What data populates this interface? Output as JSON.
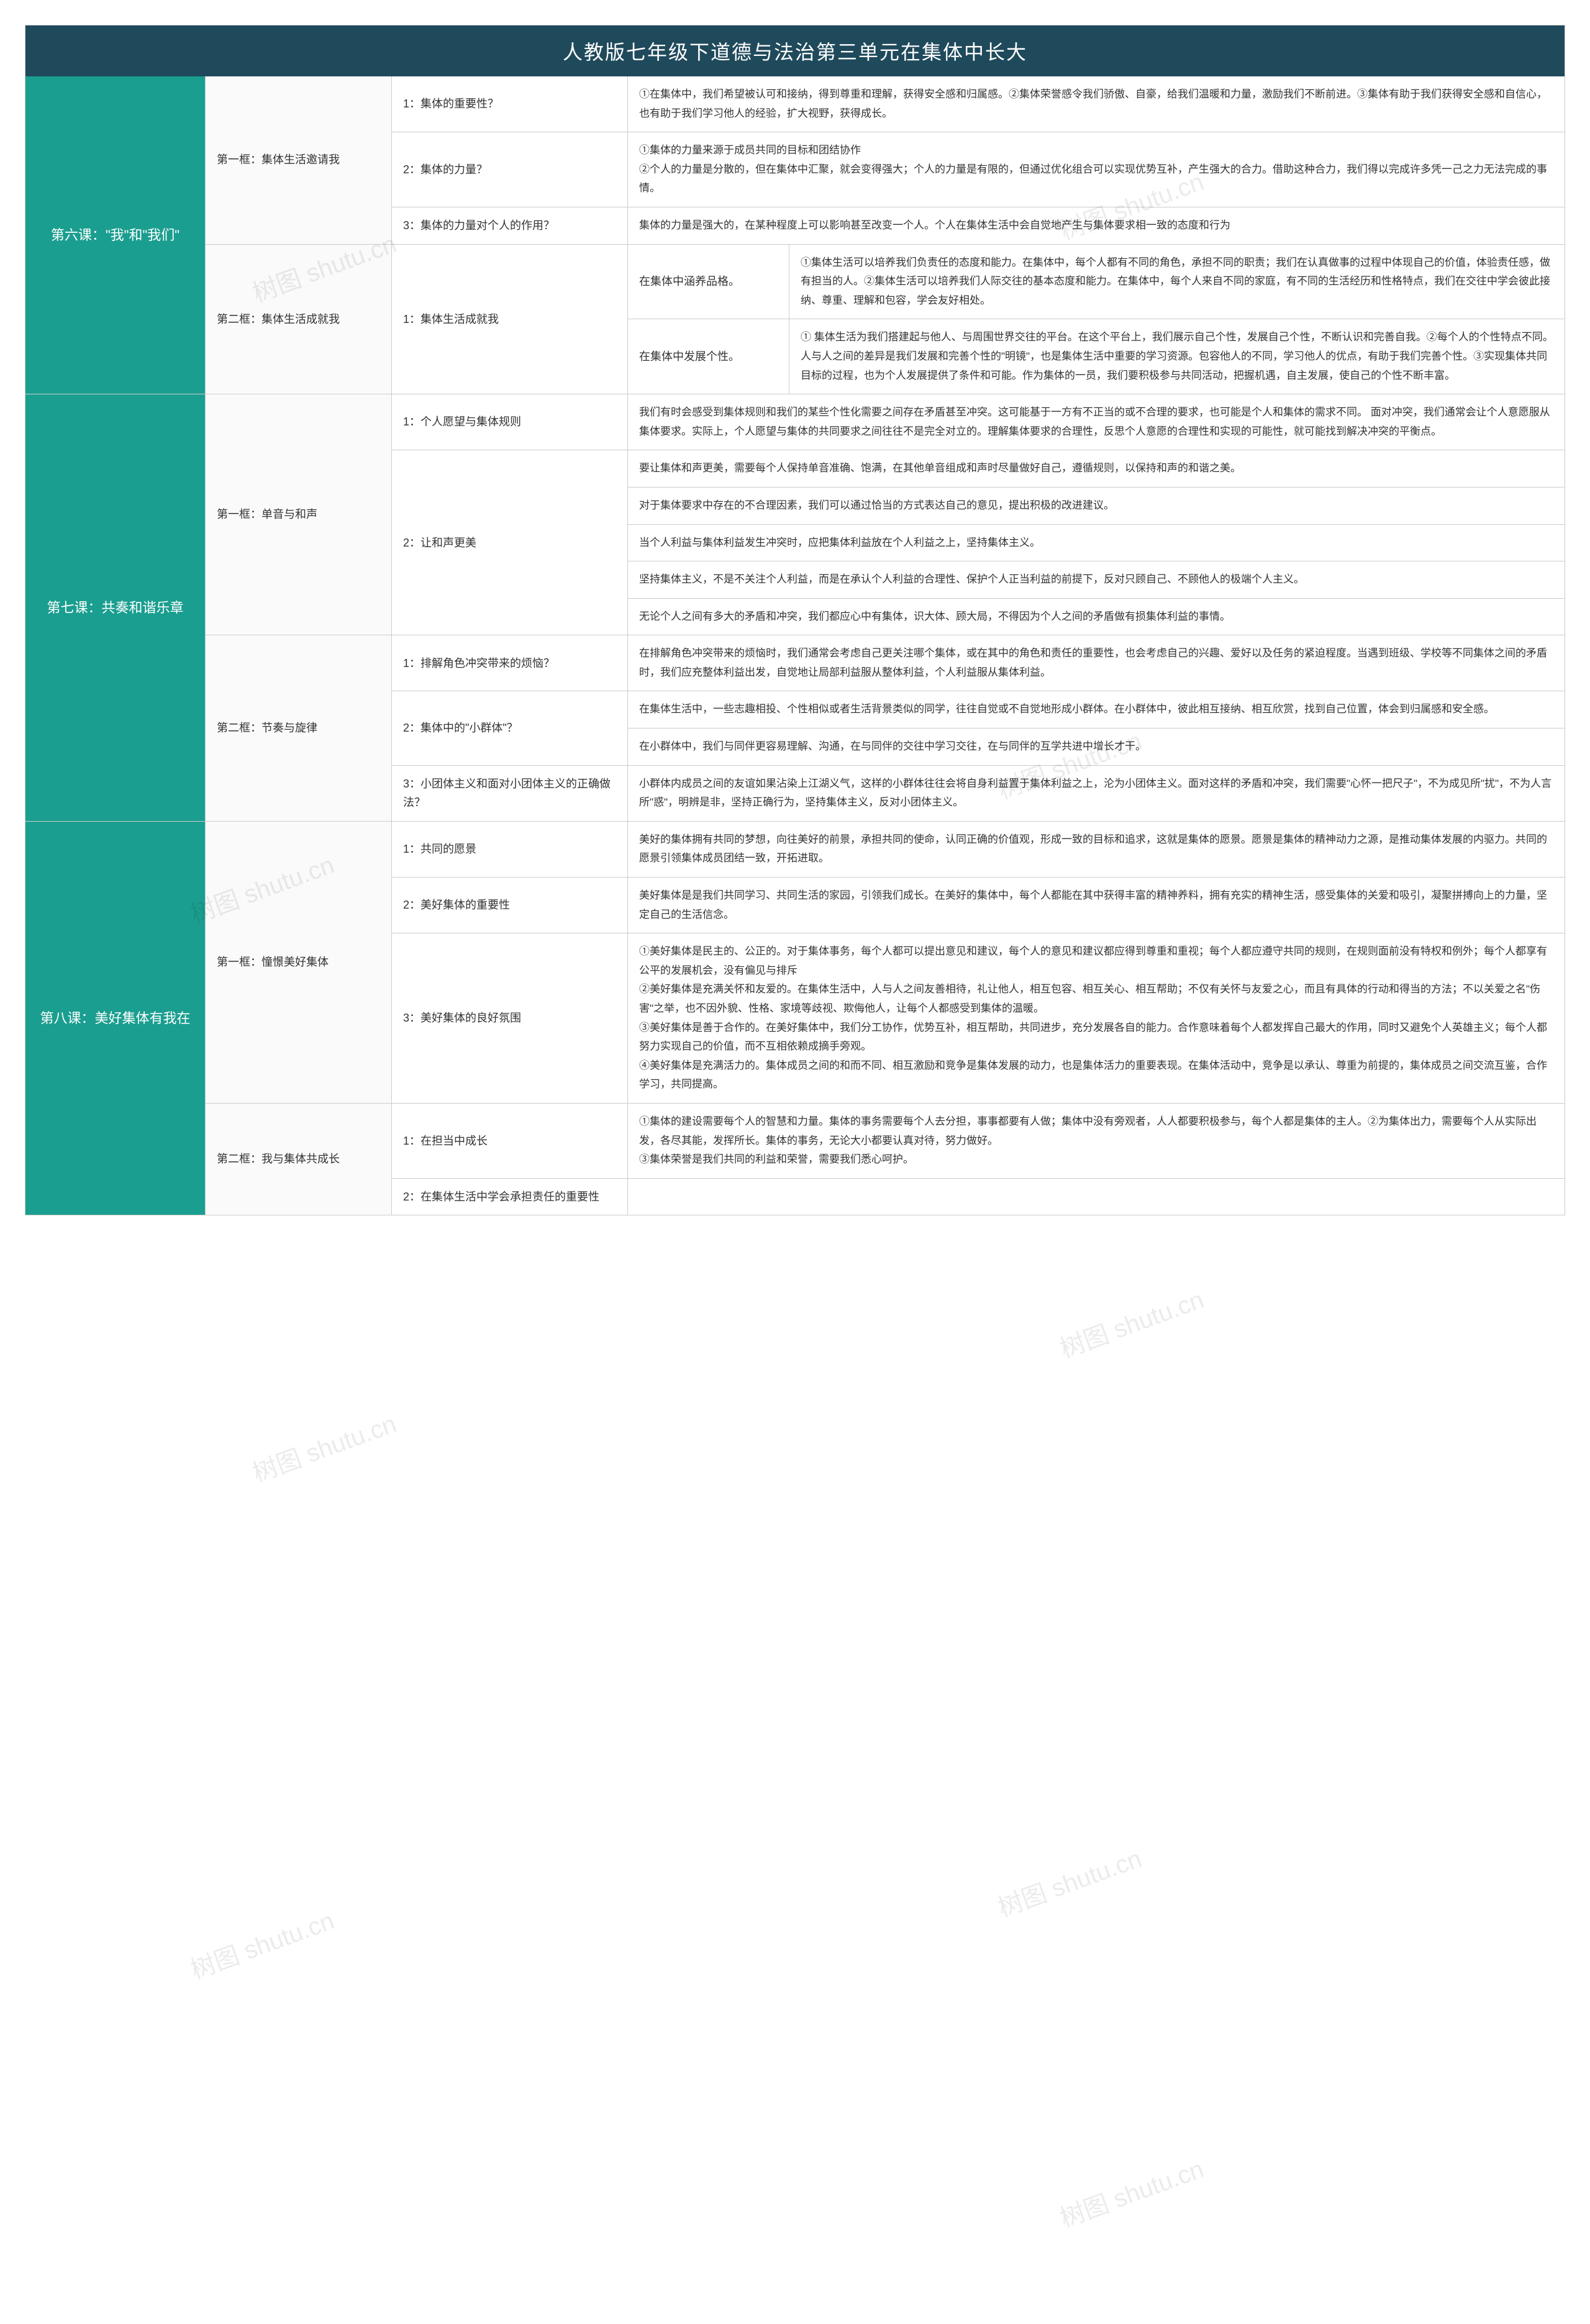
{
  "colors": {
    "title_bg": "#1f4a5c",
    "lesson_bg": "#1a9e8f",
    "border": "#cccccc",
    "text": "#333333",
    "detail_text": "#333333"
  },
  "title": "人教版七年级下道德与法治第三单元在集体中长大",
  "watermark": "树图 shutu.cn",
  "lessons": [
    {
      "name": "第六课：\"我\"和\"我们\"",
      "frames": [
        {
          "name": "第一框：集体生活邀请我",
          "points": [
            {
              "label": "1：集体的重要性？",
              "details": [
                "①在集体中，我们希望被认可和接纳，得到尊重和理解，获得安全感和归属感。②集体荣誉感令我们骄傲、自豪，给我们温暖和力量，激励我们不断前进。③集体有助于我们获得安全感和自信心，也有助于我们学习他人的经验，扩大视野，获得成长。"
              ]
            },
            {
              "label": "2：集体的力量？",
              "details": [
                "①集体的力量来源于成员共同的目标和团结协作\n②个人的力量是分散的，但在集体中汇聚，就会变得强大；个人的力量是有限的，但通过优化组合可以实现优势互补，产生强大的合力。借助这种合力，我们得以完成许多凭一己之力无法完成的事情。"
              ]
            },
            {
              "label": "3：集体的力量对个人的作用？",
              "details": [
                "集体的力量是强大的，在某种程度上可以影响甚至改变一个人。个人在集体生活中会自觉地产生与集体要求相一致的态度和行为"
              ]
            }
          ]
        },
        {
          "name": "第二框：集体生活成就我",
          "points": [
            {
              "label": "1：集体生活成就我",
              "subs": [
                {
                  "label": "在集体中涵养品格。",
                  "detail": "①集体生活可以培养我们负责任的态度和能力。在集体中，每个人都有不同的角色，承担不同的职责；我们在认真做事的过程中体现自己的价值，体验责任感，做有担当的人。②集体生活可以培养我们人际交往的基本态度和能力。在集体中，每个人来自不同的家庭，有不同的生活经历和性格特点，我们在交往中学会彼此接纳、尊重、理解和包容，学会友好相处。"
                },
                {
                  "label": "在集体中发展个性。",
                  "detail": "① 集体生活为我们搭建起与他人、与周围世界交往的平台。在这个平台上，我们展示自己个性，发展自己个性，不断认识和完善自我。②每个人的个性特点不同。人与人之间的差异是我们发展和完善个性的\"明镜\"，也是集体生活中重要的学习资源。包容他人的不同，学习他人的优点，有助于我们完善个性。③实现集体共同目标的过程，也为个人发展提供了条件和可能。作为集体的一员，我们要积极参与共同活动，把握机遇，自主发展，使自己的个性不断丰富。"
                }
              ]
            }
          ]
        }
      ]
    },
    {
      "name": "第七课：共奏和谐乐章",
      "frames": [
        {
          "name": "第一框：单音与和声",
          "points": [
            {
              "label": "1：个人愿望与集体规则",
              "details": [
                "我们有时会感受到集体规则和我们的某些个性化需要之间存在矛盾甚至冲突。这可能基于一方有不正当的或不合理的要求，也可能是个人和集体的需求不同。 面对冲突，我们通常会让个人意愿服从集体要求。实际上，个人愿望与集体的共同要求之间往往不是完全对立的。理解集体要求的合理性，反思个人意愿的合理性和实现的可能性，就可能找到解决冲突的平衡点。"
              ]
            },
            {
              "label": "2：让和声更美",
              "details": [
                "要让集体和声更美，需要每个人保持单音准确、饱满，在其他单音组成和声时尽量做好自己，遵循规则，以保持和声的和谐之美。",
                "对于集体要求中存在的不合理因素，我们可以通过恰当的方式表达自己的意见，提出积极的改进建议。",
                "当个人利益与集体利益发生冲突时，应把集体利益放在个人利益之上，坚持集体主义。",
                "坚持集体主义，不是不关注个人利益，而是在承认个人利益的合理性、保护个人正当利益的前提下，反对只顾自己、不顾他人的极端个人主义。",
                "无论个人之间有多大的矛盾和冲突，我们都应心中有集体，识大体、顾大局，不得因为个人之间的矛盾做有损集体利益的事情。"
              ]
            }
          ]
        },
        {
          "name": "第二框：节奏与旋律",
          "points": [
            {
              "label": "1：排解角色冲突带来的烦恼？",
              "details": [
                "在排解角色冲突带来的烦恼时，我们通常会考虑自己更关注哪个集体，或在其中的角色和责任的重要性，也会考虑自己的兴趣、爱好以及任务的紧迫程度。当遇到班级、学校等不同集体之间的矛盾时，我们应充整体利益出发，自觉地让局部利益服从整体利益，个人利益服从集体利益。"
              ]
            },
            {
              "label": "2：集体中的\"小群体\"？",
              "details": [
                "在集体生活中，一些志趣相投、个性相似或者生活背景类似的同学，往往自觉或不自觉地形成小群体。在小群体中，彼此相互接纳、相互欣赏，找到自己位置，体会到归属感和安全感。",
                "在小群体中，我们与同伴更容易理解、沟通，在与同伴的交往中学习交往，在与同伴的互学共进中增长才干。"
              ]
            },
            {
              "label": "3：小团体主义和面对小团体主义的正确做法？",
              "details": [
                "小群体内成员之间的友谊如果沾染上江湖义气，这样的小群体往往会将自身利益置于集体利益之上，沦为小团体主义。面对这样的矛盾和冲突，我们需要\"心怀一把尺子\"，不为成见所\"扰\"，不为人言所\"惑\"，明辨是非，坚持正确行为，坚持集体主义，反对小团体主义。"
              ]
            }
          ]
        }
      ]
    },
    {
      "name": "第八课：美好集体有我在",
      "frames": [
        {
          "name": "第一框：憧憬美好集体",
          "points": [
            {
              "label": "1：共同的愿景",
              "details": [
                "美好的集体拥有共同的梦想，向往美好的前景，承担共同的使命，认同正确的价值观，形成一致的目标和追求，这就是集体的愿景。愿景是集体的精神动力之源，是推动集体发展的内驱力。共同的愿景引领集体成员团结一致，开拓进取。"
              ]
            },
            {
              "label": "2：美好集体的重要性",
              "details": [
                "美好集体是是我们共同学习、共同生活的家园，引领我们成长。在美好的集体中，每个人都能在其中获得丰富的精神养料，拥有充实的精神生活，感受集体的关爱和吸引，凝聚拼搏向上的力量，坚定自己的生活信念。"
              ]
            },
            {
              "label": "3：美好集体的良好氛围",
              "details": [
                "①美好集体是民主的、公正的。对于集体事务，每个人都可以提出意见和建议，每个人的意见和建议都应得到尊重和重视；每个人都应遵守共同的规则，在规则面前没有特权和例外；每个人都享有公平的发展机会，没有偏见与排斥\n②美好集体是充满关怀和友爱的。在集体生活中，人与人之间友善相待，礼让他人，相互包容、相互关心、相互帮助；不仅有关怀与友爱之心，而且有具体的行动和得当的方法；不以关爱之名\"伤害\"之举，也不因外貌、性格、家境等歧视、欺侮他人，让每个人都感受到集体的温暖。\n③美好集体是善于合作的。在美好集体中，我们分工协作，优势互补，相互帮助，共同进步，充分发展各自的能力。合作意味着每个人都发挥自己最大的作用，同时又避免个人英雄主义；每个人都努力实现自己的价值，而不互相依赖成摘手旁观。\n④美好集体是充满活力的。集体成员之间的和而不同、相互激励和竞争是集体发展的动力，也是集体活力的重要表现。在集体活动中，竞争是以承认、尊重为前提的，集体成员之间交流互鉴，合作学习，共同提高。"
              ]
            }
          ]
        },
        {
          "name": "第二框：我与集体共成长",
          "points": [
            {
              "label": "1：在担当中成长",
              "details": [
                "①集体的建设需要每个人的智慧和力量。集体的事务需要每个人去分担，事事都要有人做；集体中没有旁观者，人人都要积极参与，每个人都是集体的主人。②为集体出力，需要每个人从实际出发，各尽其能，发挥所长。集体的事务，无论大小都要认真对待，努力做好。\n③集体荣誉是我们共同的利益和荣誉，需要我们悉心呵护。"
              ]
            },
            {
              "label": "2：在集体生活中学会承担责任的重要性",
              "details": [
                ""
              ]
            }
          ]
        }
      ]
    }
  ]
}
